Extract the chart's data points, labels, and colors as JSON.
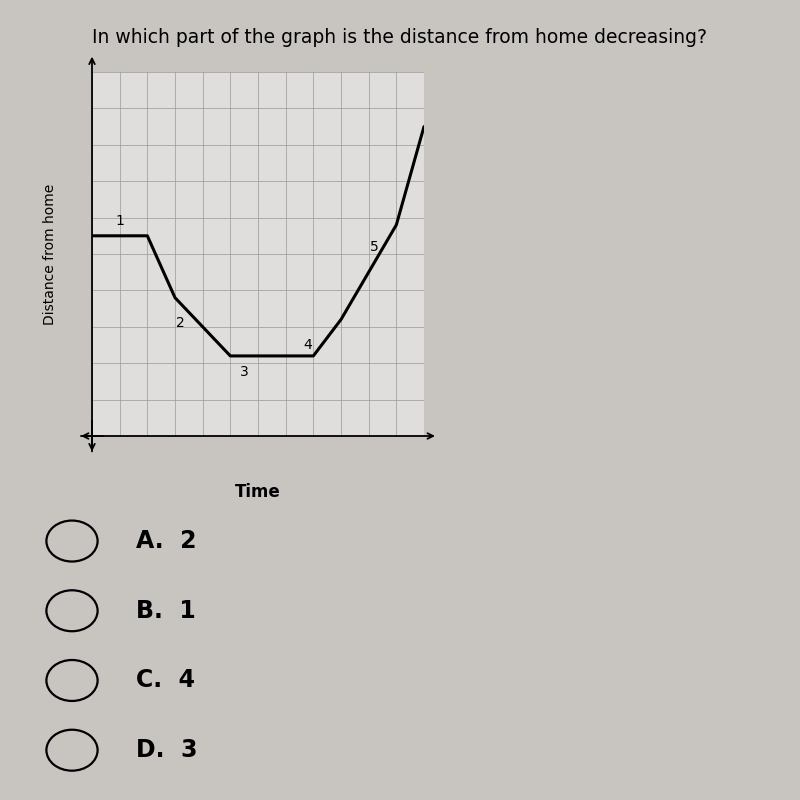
{
  "title": "In which part of the graph is the distance from home decreasing?",
  "title_fontsize": 13.5,
  "xlabel": "Time",
  "ylabel": "Distance from home",
  "background_color": "#c8c4c0",
  "graph_bg": "#e0dedd",
  "line_color": "#000000",
  "line_width": 2.2,
  "choices": [
    "A.  2",
    "B.  1",
    "C.  4",
    "D.  3"
  ],
  "curve_x": [
    0,
    2,
    3,
    5,
    6,
    8,
    9,
    11,
    12
  ],
  "curve_y": [
    5.5,
    5.5,
    3.8,
    2.2,
    2.2,
    2.2,
    3.2,
    5.8,
    8.5
  ],
  "seg_labels": [
    [
      1.0,
      5.9,
      "1"
    ],
    [
      3.2,
      3.1,
      "2"
    ],
    [
      5.5,
      1.75,
      "3"
    ],
    [
      7.8,
      2.5,
      "4"
    ],
    [
      10.2,
      5.2,
      "5"
    ]
  ],
  "grid_nx": 12,
  "grid_ny": 10
}
